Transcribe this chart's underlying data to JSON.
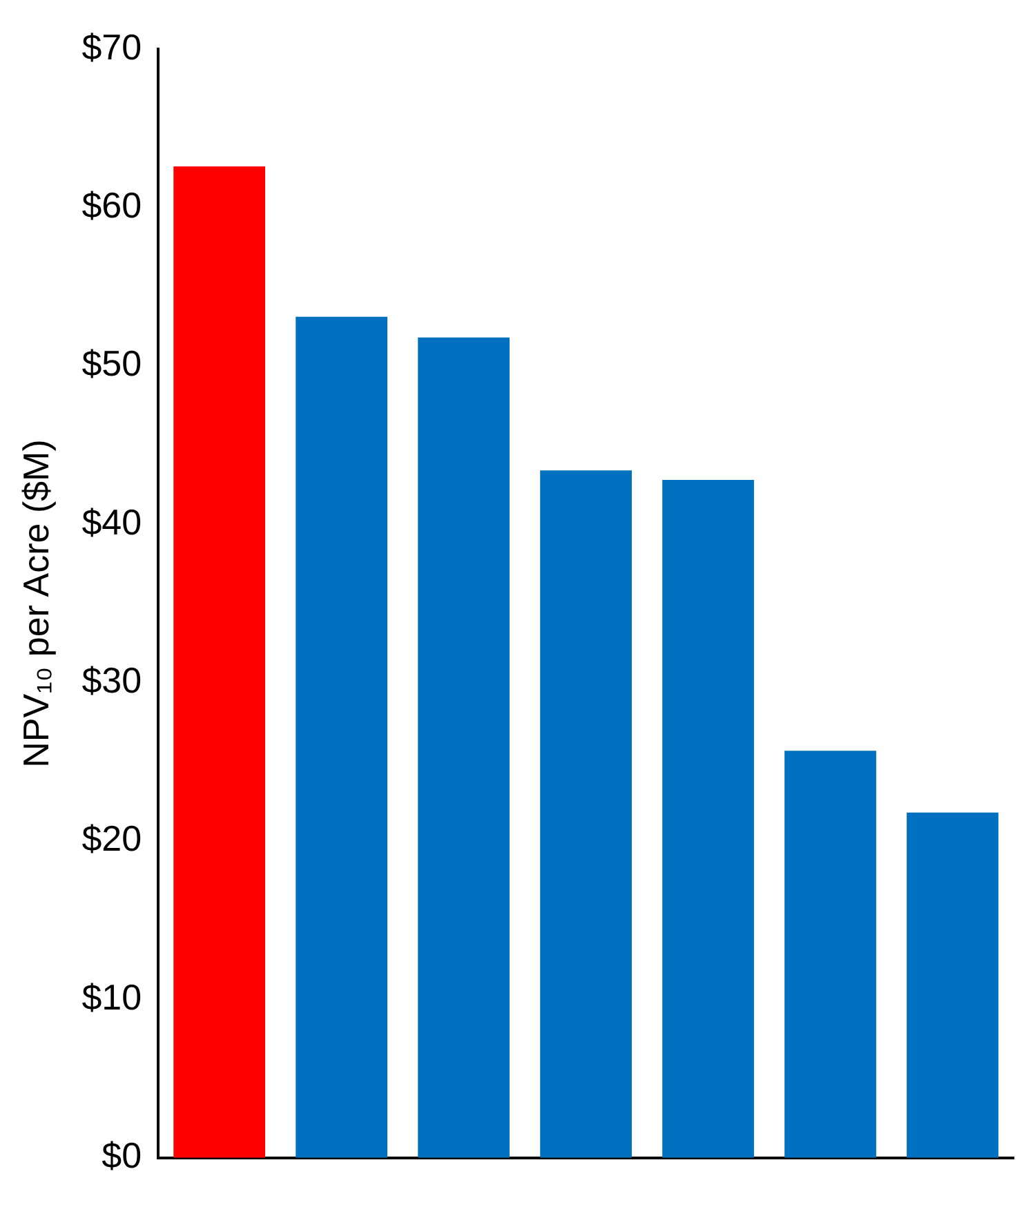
{
  "chart_data": {
    "type": "bar",
    "categories": [
      null,
      null,
      null,
      null,
      null,
      null,
      null
    ],
    "values": [
      62.6,
      53.1,
      51.8,
      43.4,
      42.8,
      25.7,
      21.8
    ],
    "colors": [
      "#ff0000",
      "#0070c0",
      "#0070c0",
      "#0070c0",
      "#0070c0",
      "#0070c0",
      "#0070c0"
    ],
    "ylabel": "NPV₁₀ per Acre ($M)",
    "ylim": [
      0,
      70
    ],
    "yticks": [
      {
        "value": 0,
        "label": "$0"
      },
      {
        "value": 10,
        "label": "$10"
      },
      {
        "value": 20,
        "label": "$20"
      },
      {
        "value": 30,
        "label": "$30"
      },
      {
        "value": 40,
        "label": "$40"
      },
      {
        "value": 50,
        "label": "$50"
      },
      {
        "value": 60,
        "label": "$60"
      },
      {
        "value": 70,
        "label": "$70"
      }
    ],
    "grid": false,
    "legend": false
  }
}
